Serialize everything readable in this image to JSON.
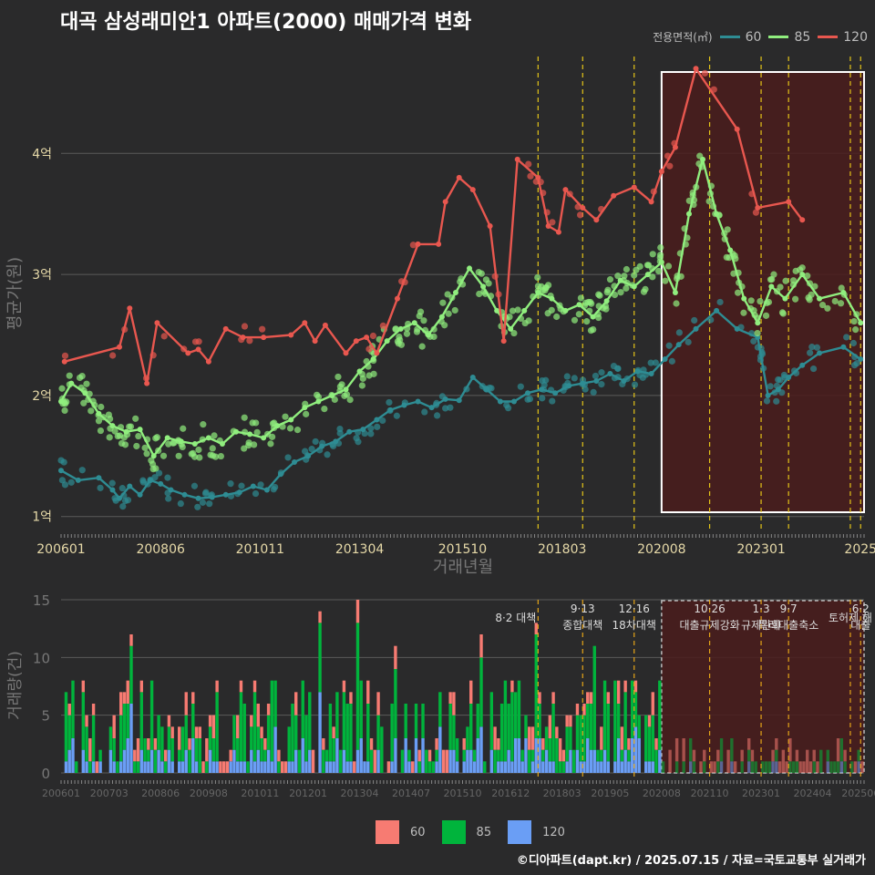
{
  "title": "대곡 삼성래미안1 아파트(2000) 매매가격 변화",
  "credit": "©디아파트(dapt.kr) / 2025.07.15 / 자료=국토교통부 실거래가",
  "colors": {
    "s60_line": "#2e8c93",
    "s85_line": "#90ee7e",
    "s120_line": "#e8574f",
    "s60_bar": "#6a9ef5",
    "s85_bar": "#00b43c",
    "s120_bar": "#f77b72"
  },
  "top_legend": {
    "title": "전용면적(㎡)",
    "items": [
      "60",
      "85",
      "120"
    ]
  },
  "bottom_legend": {
    "items": [
      "60",
      "85",
      "120"
    ]
  },
  "chart_data": [
    {
      "type": "line",
      "xlabel": "거래년월",
      "ylabel": "평균가(원)",
      "x_range": [
        "2006-01",
        "2025-07"
      ],
      "ylim": [
        0.9,
        4.8
      ],
      "y_ticks": [
        1,
        2,
        3,
        4
      ],
      "y_tick_labels": [
        "1억",
        "2억",
        "3억",
        "4억"
      ],
      "x_ticks": [
        "2006-01",
        "2008-06",
        "2010-11",
        "2013-04",
        "2015-10",
        "2018-03",
        "2020-08",
        "2023-01",
        "2025-06"
      ],
      "x_tick_labels": [
        "200601",
        "200806",
        "201011",
        "201304",
        "201510",
        "201803",
        "202008",
        "202301",
        "2025"
      ],
      "grid": true,
      "legend": "top-right",
      "highlight_range": [
        "2020-08",
        "2025-07"
      ],
      "policy_lines": [
        "2017-08",
        "2018-09",
        "2019-12",
        "2021-10",
        "2023-01",
        "2023-09",
        "2025-03",
        "2025-06"
      ],
      "series": [
        {
          "name": "60",
          "points": [
            [
              "2006-01",
              1.38
            ],
            [
              "2006-06",
              1.3
            ],
            [
              "2006-12",
              1.32
            ],
            [
              "2007-04",
              1.22
            ],
            [
              "2007-06",
              1.15
            ],
            [
              "2007-09",
              1.25
            ],
            [
              "2007-12",
              1.18
            ],
            [
              "2008-03",
              1.3
            ],
            [
              "2008-06",
              1.27
            ],
            [
              "2008-09",
              1.22
            ],
            [
              "2009-01",
              1.18
            ],
            [
              "2009-05",
              1.15
            ],
            [
              "2009-09",
              1.16
            ],
            [
              "2010-01",
              1.18
            ],
            [
              "2010-05",
              1.2
            ],
            [
              "2010-09",
              1.25
            ],
            [
              "2011-01",
              1.22
            ],
            [
              "2011-05",
              1.35
            ],
            [
              "2011-09",
              1.45
            ],
            [
              "2012-01",
              1.5
            ],
            [
              "2012-05",
              1.58
            ],
            [
              "2012-09",
              1.62
            ],
            [
              "2013-01",
              1.7
            ],
            [
              "2013-05",
              1.72
            ],
            [
              "2013-09",
              1.8
            ],
            [
              "2014-01",
              1.88
            ],
            [
              "2014-05",
              1.92
            ],
            [
              "2014-09",
              1.95
            ],
            [
              "2015-01",
              1.9
            ],
            [
              "2015-05",
              1.97
            ],
            [
              "2015-09",
              1.96
            ],
            [
              "2016-01",
              2.15
            ],
            [
              "2016-05",
              2.05
            ],
            [
              "2016-09",
              1.95
            ],
            [
              "2017-01",
              1.95
            ],
            [
              "2017-05",
              2.02
            ],
            [
              "2017-09",
              2.05
            ],
            [
              "2018-01",
              2.02
            ],
            [
              "2018-05",
              2.08
            ],
            [
              "2018-09",
              2.1
            ],
            [
              "2019-01",
              2.12
            ],
            [
              "2019-05",
              2.18
            ],
            [
              "2019-09",
              2.12
            ],
            [
              "2020-01",
              2.2
            ],
            [
              "2020-05",
              2.18
            ],
            [
              "2020-09",
              2.3
            ],
            [
              "2021-01",
              2.42
            ],
            [
              "2021-06",
              2.55
            ],
            [
              "2021-12",
              2.7
            ],
            [
              "2022-06",
              2.55
            ],
            [
              "2022-12",
              2.48
            ],
            [
              "2023-03",
              2.0
            ],
            [
              "2023-06",
              2.05
            ],
            [
              "2023-09",
              2.15
            ],
            [
              "2024-01",
              2.25
            ],
            [
              "2024-06",
              2.35
            ],
            [
              "2025-01",
              2.4
            ],
            [
              "2025-06",
              2.3
            ]
          ]
        },
        {
          "name": "85",
          "points": [
            [
              "2006-01",
              1.95
            ],
            [
              "2006-04",
              2.1
            ],
            [
              "2006-08",
              2.02
            ],
            [
              "2006-12",
              1.85
            ],
            [
              "2007-04",
              1.75
            ],
            [
              "2007-08",
              1.7
            ],
            [
              "2007-12",
              1.72
            ],
            [
              "2008-04",
              1.5
            ],
            [
              "2008-08",
              1.65
            ],
            [
              "2008-12",
              1.62
            ],
            [
              "2009-04",
              1.6
            ],
            [
              "2009-08",
              1.65
            ],
            [
              "2009-12",
              1.6
            ],
            [
              "2010-04",
              1.7
            ],
            [
              "2010-08",
              1.68
            ],
            [
              "2010-12",
              1.65
            ],
            [
              "2011-04",
              1.75
            ],
            [
              "2011-08",
              1.8
            ],
            [
              "2011-12",
              1.9
            ],
            [
              "2012-04",
              1.95
            ],
            [
              "2012-08",
              2.0
            ],
            [
              "2012-12",
              2.05
            ],
            [
              "2013-04",
              2.2
            ],
            [
              "2013-08",
              2.3
            ],
            [
              "2013-12",
              2.45
            ],
            [
              "2014-04",
              2.55
            ],
            [
              "2014-08",
              2.6
            ],
            [
              "2014-12",
              2.5
            ],
            [
              "2015-04",
              2.65
            ],
            [
              "2015-08",
              2.85
            ],
            [
              "2015-12",
              3.05
            ],
            [
              "2016-04",
              2.9
            ],
            [
              "2016-08",
              2.7
            ],
            [
              "2016-12",
              2.55
            ],
            [
              "2017-04",
              2.7
            ],
            [
              "2017-08",
              2.85
            ],
            [
              "2017-12",
              2.8
            ],
            [
              "2018-04",
              2.7
            ],
            [
              "2018-08",
              2.75
            ],
            [
              "2018-12",
              2.65
            ],
            [
              "2019-04",
              2.78
            ],
            [
              "2019-08",
              2.95
            ],
            [
              "2019-12",
              2.9
            ],
            [
              "2020-04",
              3.0
            ],
            [
              "2020-08",
              3.1
            ],
            [
              "2020-12",
              2.85
            ],
            [
              "2021-04",
              3.5
            ],
            [
              "2021-08",
              3.95
            ],
            [
              "2021-12",
              3.5
            ],
            [
              "2022-04",
              3.2
            ],
            [
              "2022-08",
              2.8
            ],
            [
              "2022-12",
              2.6
            ],
            [
              "2023-04",
              2.9
            ],
            [
              "2023-08",
              2.8
            ],
            [
              "2024-01",
              3.0
            ],
            [
              "2024-06",
              2.8
            ],
            [
              "2025-01",
              2.85
            ],
            [
              "2025-06",
              2.6
            ]
          ]
        },
        {
          "name": "120",
          "points": [
            [
              "2006-02",
              2.28
            ],
            [
              "2007-06",
              2.4
            ],
            [
              "2007-09",
              2.72
            ],
            [
              "2008-02",
              2.1
            ],
            [
              "2008-05",
              2.6
            ],
            [
              "2009-02",
              2.35
            ],
            [
              "2009-05",
              2.38
            ],
            [
              "2009-08",
              2.28
            ],
            [
              "2010-01",
              2.55
            ],
            [
              "2010-06",
              2.48
            ],
            [
              "2010-12",
              2.48
            ],
            [
              "2011-08",
              2.5
            ],
            [
              "2011-12",
              2.6
            ],
            [
              "2012-03",
              2.45
            ],
            [
              "2012-06",
              2.58
            ],
            [
              "2012-12",
              2.35
            ],
            [
              "2013-03",
              2.45
            ],
            [
              "2013-06",
              2.48
            ],
            [
              "2013-09",
              2.35
            ],
            [
              "2014-03",
              2.8
            ],
            [
              "2014-09",
              3.25
            ],
            [
              "2015-03",
              3.25
            ],
            [
              "2015-05",
              3.6
            ],
            [
              "2015-09",
              3.8
            ],
            [
              "2016-01",
              3.7
            ],
            [
              "2016-06",
              3.4
            ],
            [
              "2016-10",
              2.45
            ],
            [
              "2017-02",
              3.95
            ],
            [
              "2017-08",
              3.8
            ],
            [
              "2017-11",
              3.4
            ],
            [
              "2018-02",
              3.35
            ],
            [
              "2018-04",
              3.7
            ],
            [
              "2018-09",
              3.55
            ],
            [
              "2019-01",
              3.45
            ],
            [
              "2019-06",
              3.65
            ],
            [
              "2019-12",
              3.72
            ],
            [
              "2020-05",
              3.6
            ],
            [
              "2020-08",
              3.85
            ],
            [
              "2020-12",
              4.05
            ],
            [
              "2021-06",
              4.7
            ],
            [
              "2022-06",
              4.2
            ],
            [
              "2022-12",
              3.55
            ],
            [
              "2023-09",
              3.6
            ],
            [
              "2024-01",
              3.45
            ]
          ]
        }
      ]
    },
    {
      "type": "bar",
      "xlabel": "",
      "ylabel": "거래량(건)",
      "x_range": [
        "2006-01",
        "2025-07"
      ],
      "ylim": [
        0,
        15
      ],
      "y_ticks": [
        0,
        5,
        10,
        15
      ],
      "x_ticks": [
        "2006-01",
        "2007-03",
        "2008-06",
        "2009-08",
        "2010-11",
        "2012-01",
        "2013-04",
        "2014-07",
        "2015-10",
        "2016-12",
        "2018-03",
        "2019-05",
        "2020-08",
        "2021-10",
        "2023-01",
        "2024-04",
        "2025-06"
      ],
      "x_tick_labels": [
        "200601",
        "200703",
        "200806",
        "200908",
        "201011",
        "201201",
        "201304",
        "201407",
        "201510",
        "201612",
        "201803",
        "201905",
        "202008",
        "202110",
        "202301",
        "202404",
        "202506"
      ],
      "stacked": true,
      "highlight_range": [
        "2020-08",
        "2025-07"
      ],
      "legend": "bottom",
      "annotations": [
        {
          "date": "2017-08",
          "text": "8·2 대책"
        },
        {
          "date": "2018-09",
          "text": "9·13\n종합대책"
        },
        {
          "date": "2019-12",
          "text": "12·16\n18차대책"
        },
        {
          "date": "2021-10",
          "text": "10·26\n대출규제강화"
        },
        {
          "date": "2023-01",
          "text": "1·3\n규제완화"
        },
        {
          "date": "2023-09",
          "text": "9·7\n특례대출축소"
        },
        {
          "date": "2025-03",
          "text": "토허제 해"
        },
        {
          "date": "2025-06",
          "text": "6·2\n대출"
        }
      ],
      "series_names": [
        "60",
        "85",
        "120"
      ]
    }
  ]
}
